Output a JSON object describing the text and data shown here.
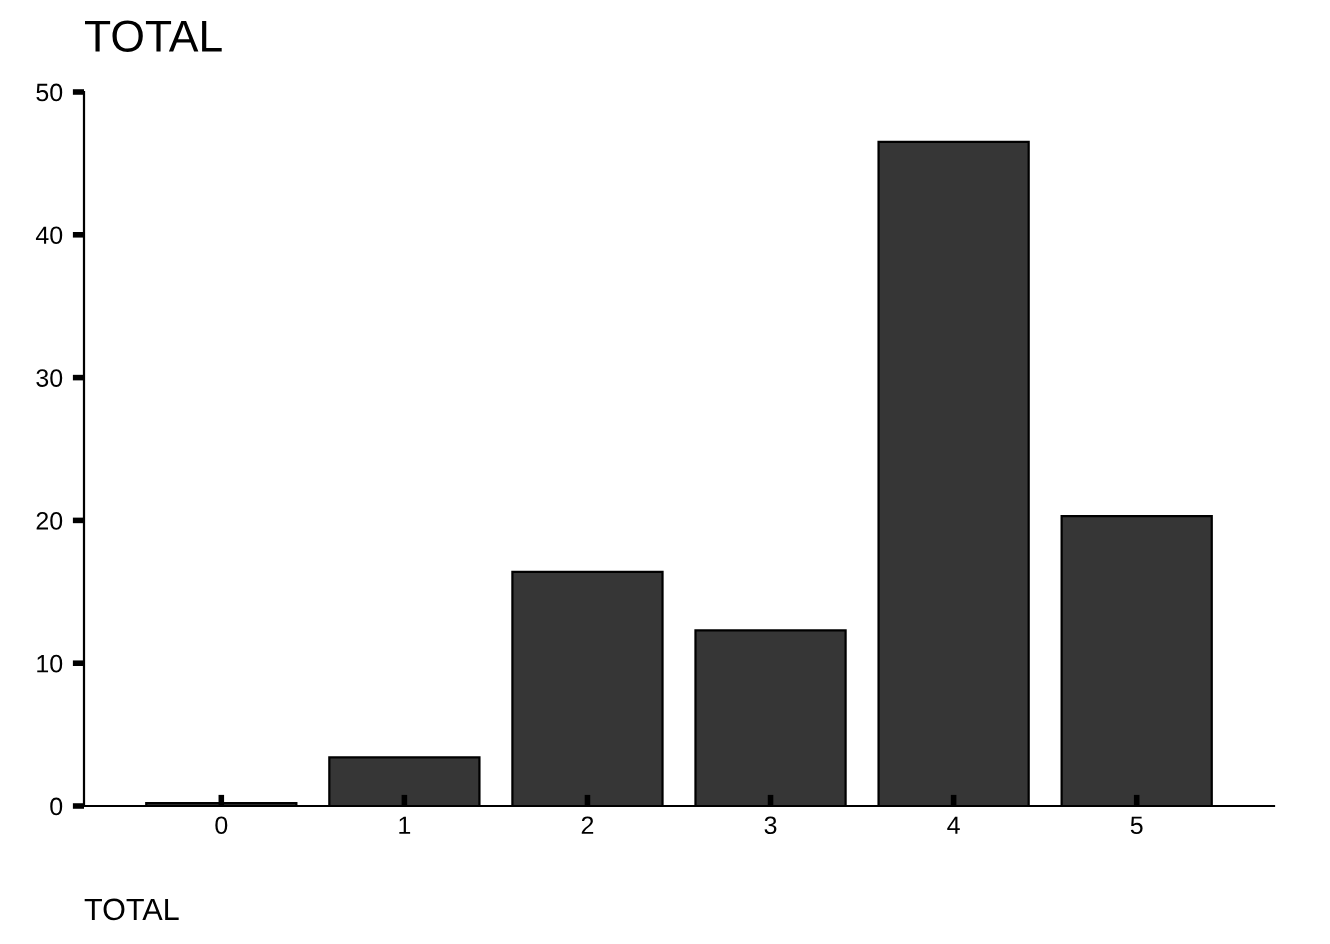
{
  "chart_data": {
    "type": "bar",
    "title": "TOTAL",
    "xlabel": "TOTAL",
    "categories": [
      "0",
      "1",
      "2",
      "3",
      "4",
      "5"
    ],
    "values": [
      0.2,
      3.4,
      16.4,
      12.3,
      46.5,
      20.3
    ],
    "color": "#363636",
    "ylim": [
      0,
      50
    ],
    "yticks": [
      0,
      10,
      20,
      30,
      40,
      50
    ],
    "grid": false,
    "legend": false
  }
}
